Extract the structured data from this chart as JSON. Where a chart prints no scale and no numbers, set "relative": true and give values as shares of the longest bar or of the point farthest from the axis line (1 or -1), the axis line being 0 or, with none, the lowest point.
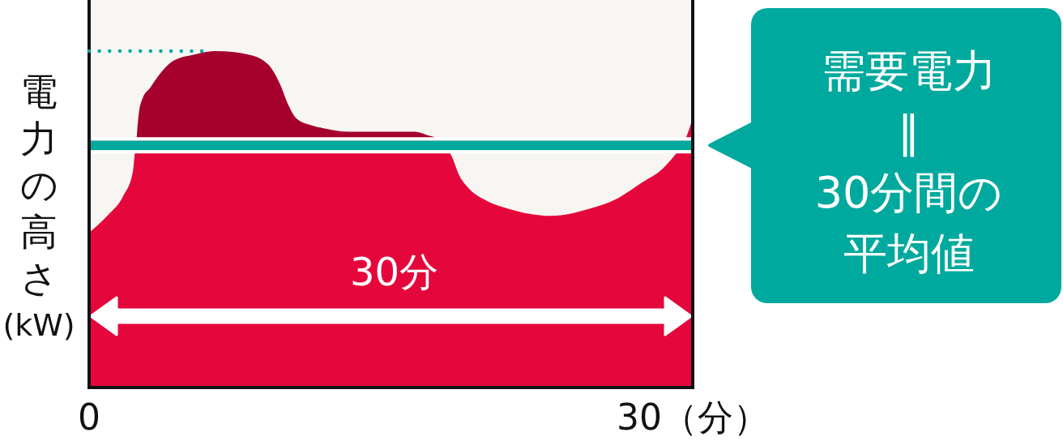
{
  "chart_data": {
    "type": "area",
    "relative": true,
    "tick_labels": "x",
    "x": [
      0,
      0.9,
      1.7,
      2.17,
      2.28,
      2.34,
      2.46,
      2.66,
      3.02,
      3.49,
      4.15,
      5.24,
      6.3,
      7.9,
      8.9,
      9.5,
      9.9,
      10.3,
      11.0,
      11.7,
      12.9,
      16.2,
      16.8,
      17.3,
      17.6,
      18.0,
      18.4,
      18.9,
      19.6,
      20.9,
      23.0,
      24.8,
      26.2,
      27.5,
      28.5,
      29.1,
      29.5,
      30
    ],
    "series": [
      {
        "color": "#a5002e",
        "x": [
          2.34,
          2.46,
          2.66,
          3.02,
          3.49,
          4.15,
          5.24,
          6.3,
          7.9,
          8.9,
          9.5,
          9.9,
          10.3,
          11.0,
          11.7,
          12.9,
          16.2,
          16.8,
          17.3,
          17.6
        ],
        "values": [
          0.72,
          0.81,
          0.86,
          0.89,
          0.93,
          0.97,
          0.99,
          1.0,
          0.99,
          0.96,
          0.9,
          0.84,
          0.8,
          0.78,
          0.77,
          0.76,
          0.76,
          0.75,
          0.74,
          0.72
        ]
      },
      {
        "color": "#e5063b",
        "values": [
          0.46,
          0.51,
          0.57,
          0.64,
          0.7,
          0.72,
          0.72,
          0.72,
          0.72,
          0.72,
          0.72,
          0.72,
          0.72,
          0.72,
          0.72,
          0.72,
          0.72,
          0.72,
          0.72,
          0.72,
          0.72,
          0.72,
          0.72,
          0.72,
          0.72,
          0.69,
          0.63,
          0.59,
          0.56,
          0.53,
          0.51,
          0.53,
          0.56,
          0.61,
          0.65,
          0.69,
          0.72,
          0.8
        ]
      },
      {
        "type": "line",
        "x": [
          0,
          5.6
        ],
        "values": [
          1,
          1
        ],
        "color": "#00a99d",
        "line_style": "dotted"
      }
    ],
    "xlim": [
      0,
      30
    ],
    "xticks": [
      0,
      {
        "value": 30,
        "label": "30（分）"
      }
    ],
    "ylabel": "電力の高さ(kW)",
    "ref_lines": [
      {
        "axis": "y",
        "value": 0.72,
        "label": "需要電力\n‖\n30分間の平均値",
        "color": "#00a99d"
      }
    ],
    "annotations": [
      "30分"
    ]
  }
}
